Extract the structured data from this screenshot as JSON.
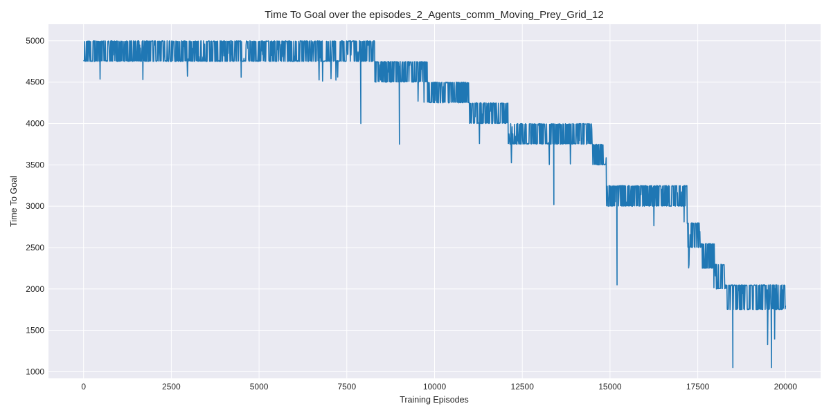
{
  "chart_data": {
    "type": "line",
    "title": "Time To Goal over the episodes_2_Agents_comm_Moving_Prey_Grid_12",
    "xlabel": "Training Episodes",
    "ylabel": "Time To Goal",
    "xlim": [
      -1000,
      21000
    ],
    "ylim": [
      920,
      5200
    ],
    "xticks": [
      0,
      2500,
      5000,
      7500,
      10000,
      12500,
      15000,
      17500,
      20000
    ],
    "yticks": [
      1000,
      1500,
      2000,
      2500,
      3000,
      3500,
      4000,
      4500,
      5000
    ],
    "grid": true,
    "legend": "none",
    "series_color": "#1f77b4",
    "background": "#eaeaf2",
    "series": [
      {
        "name": "",
        "note": "Noisy per-episode values; each segment lists approximate typical band and occasional dips",
        "segments": [
          {
            "x_start": 0,
            "x_end": 8300,
            "high": 5000,
            "low": 4750,
            "dip": 4500
          },
          {
            "x_start": 8300,
            "x_end": 9800,
            "high": 4750,
            "low": 4500,
            "dip": 4250
          },
          {
            "x_start": 9800,
            "x_end": 11000,
            "high": 4500,
            "low": 4250,
            "dip": 4000
          },
          {
            "x_start": 11000,
            "x_end": 12100,
            "high": 4250,
            "low": 4000,
            "dip": 3750
          },
          {
            "x_start": 12100,
            "x_end": 14500,
            "high": 4000,
            "low": 3750,
            "dip": 3500
          },
          {
            "x_start": 14500,
            "x_end": 14900,
            "high": 3750,
            "low": 3500,
            "dip": 3000
          },
          {
            "x_start": 14900,
            "x_end": 17200,
            "high": 3250,
            "low": 3000,
            "dip": 2750
          },
          {
            "x_start": 17200,
            "x_end": 17600,
            "high": 2800,
            "low": 2500,
            "dip": 2250
          },
          {
            "x_start": 17600,
            "x_end": 18000,
            "high": 2550,
            "low": 2250,
            "dip": 2000
          },
          {
            "x_start": 18000,
            "x_end": 18300,
            "high": 2300,
            "low": 2000,
            "dip": 1750
          },
          {
            "x_start": 18300,
            "x_end": 20000,
            "high": 2050,
            "low": 1750,
            "dip": 1300
          }
        ],
        "notable_points": [
          {
            "x": 7900,
            "y": 4000
          },
          {
            "x": 9000,
            "y": 3750
          },
          {
            "x": 13400,
            "y": 3020
          },
          {
            "x": 15200,
            "y": 2050
          },
          {
            "x": 18500,
            "y": 1050
          },
          {
            "x": 19600,
            "y": 1050
          }
        ]
      }
    ]
  }
}
